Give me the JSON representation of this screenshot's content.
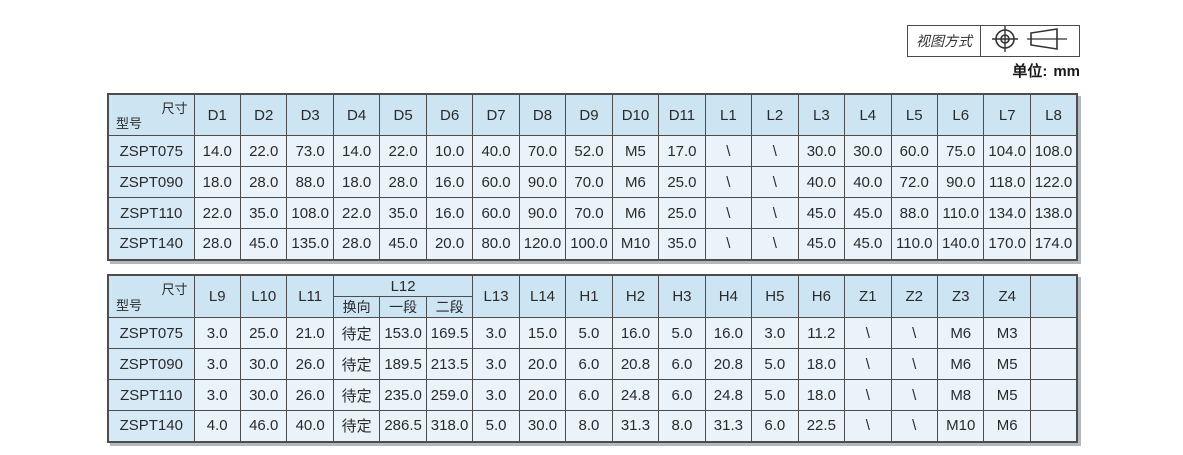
{
  "meta": {
    "view_mode_label": "视图方式",
    "unit_label": "单位:",
    "unit_value": "mm"
  },
  "corner": {
    "top": "尺寸",
    "bottom": "型号"
  },
  "table1": {
    "columns": [
      "D1",
      "D2",
      "D3",
      "D4",
      "D5",
      "D6",
      "D7",
      "D8",
      "D9",
      "D10",
      "D11",
      "L1",
      "L2",
      "L3",
      "L4",
      "L5",
      "L6",
      "L7",
      "L8"
    ],
    "rows": [
      {
        "model": "ZSPT075",
        "values": [
          "14.0",
          "22.0",
          "73.0",
          "14.0",
          "22.0",
          "10.0",
          "40.0",
          "70.0",
          "52.0",
          "M5",
          "17.0",
          "\\",
          "\\",
          "30.0",
          "30.0",
          "60.0",
          "75.0",
          "104.0",
          "108.0"
        ]
      },
      {
        "model": "ZSPT090",
        "values": [
          "18.0",
          "28.0",
          "88.0",
          "18.0",
          "28.0",
          "16.0",
          "60.0",
          "90.0",
          "70.0",
          "M6",
          "25.0",
          "\\",
          "\\",
          "40.0",
          "40.0",
          "72.0",
          "90.0",
          "118.0",
          "122.0"
        ]
      },
      {
        "model": "ZSPT110",
        "values": [
          "22.0",
          "35.0",
          "108.0",
          "22.0",
          "35.0",
          "16.0",
          "60.0",
          "90.0",
          "70.0",
          "M6",
          "25.0",
          "\\",
          "\\",
          "45.0",
          "45.0",
          "88.0",
          "110.0",
          "134.0",
          "138.0"
        ]
      },
      {
        "model": "ZSPT140",
        "values": [
          "28.0",
          "45.0",
          "135.0",
          "28.0",
          "45.0",
          "20.0",
          "80.0",
          "120.0",
          "100.0",
          "M10",
          "35.0",
          "\\",
          "\\",
          "45.0",
          "45.0",
          "110.0",
          "140.0",
          "170.0",
          "174.0"
        ]
      }
    ]
  },
  "table2": {
    "pre_columns": [
      "L9",
      "L10",
      "L11"
    ],
    "group": {
      "label": "L12",
      "subs": [
        "换向",
        "一段",
        "二段"
      ]
    },
    "post_columns": [
      "L13",
      "L14",
      "H1",
      "H2",
      "H3",
      "H4",
      "H5",
      "H6",
      "Z1",
      "Z2",
      "Z3",
      "Z4",
      ""
    ],
    "rows": [
      {
        "model": "ZSPT075",
        "values": [
          "3.0",
          "25.0",
          "21.0",
          "待定",
          "153.0",
          "169.5",
          "3.0",
          "15.0",
          "5.0",
          "16.0",
          "5.0",
          "16.0",
          "3.0",
          "11.2",
          "\\",
          "\\",
          "M6",
          "M3",
          ""
        ]
      },
      {
        "model": "ZSPT090",
        "values": [
          "3.0",
          "30.0",
          "26.0",
          "待定",
          "189.5",
          "213.5",
          "3.0",
          "20.0",
          "6.0",
          "20.8",
          "6.0",
          "20.8",
          "5.0",
          "18.0",
          "\\",
          "\\",
          "M6",
          "M5",
          ""
        ]
      },
      {
        "model": "ZSPT110",
        "values": [
          "3.0",
          "30.0",
          "26.0",
          "待定",
          "235.0",
          "259.0",
          "3.0",
          "20.0",
          "6.0",
          "24.8",
          "6.0",
          "24.8",
          "5.0",
          "18.0",
          "\\",
          "\\",
          "M8",
          "M5",
          ""
        ]
      },
      {
        "model": "ZSPT140",
        "values": [
          "4.0",
          "46.0",
          "40.0",
          "待定",
          "286.5",
          "318.0",
          "5.0",
          "30.0",
          "8.0",
          "31.3",
          "8.0",
          "31.3",
          "6.0",
          "22.5",
          "\\",
          "\\",
          "M10",
          "M6",
          ""
        ]
      }
    ]
  }
}
